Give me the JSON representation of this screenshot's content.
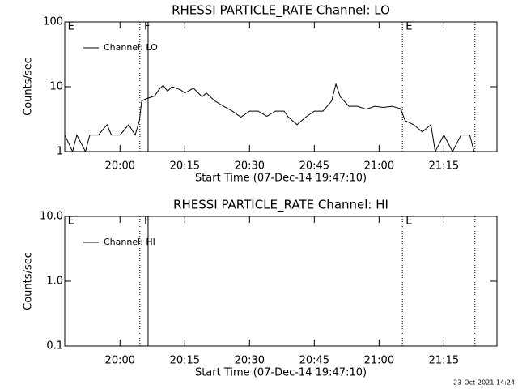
{
  "chart_data": [
    {
      "type": "line",
      "title": "RHESSI PARTICLE_RATE Channel: LO",
      "xlabel": "Start Time (07-Dec-14 19:47:10)",
      "ylabel": "Counts/sec",
      "log_y": true,
      "xlim": [
        1187.2,
        1287.3
      ],
      "ylim": [
        1,
        100
      ],
      "xticks": [
        {
          "value": 1200,
          "label": "20:00"
        },
        {
          "value": 1215,
          "label": "20:15"
        },
        {
          "value": 1230,
          "label": "20:30"
        },
        {
          "value": 1245,
          "label": "20:45"
        },
        {
          "value": 1260,
          "label": "21:00"
        },
        {
          "value": 1275,
          "label": "21:15"
        }
      ],
      "yticks": [
        1,
        10,
        100
      ],
      "legend": "upper left",
      "x": [
        1187.2,
        1189,
        1190,
        1192,
        1193,
        1195,
        1197,
        1198,
        1200,
        1202,
        1203.5,
        1204.5,
        1205,
        1206,
        1208,
        1209,
        1210,
        1211,
        1212,
        1214,
        1215,
        1217,
        1219,
        1220,
        1222,
        1224,
        1226,
        1228,
        1230,
        1232,
        1234,
        1236,
        1238,
        1239,
        1241,
        1243,
        1245,
        1247,
        1249,
        1250,
        1251,
        1253,
        1255,
        1257,
        1259,
        1261,
        1263,
        1265,
        1266,
        1268,
        1270,
        1272,
        1273,
        1275,
        1277,
        1279,
        1281,
        1282
      ],
      "series": [
        {
          "name": "Channel: LO",
          "color": "#000000",
          "values": [
            1.8,
            1,
            1.8,
            1,
            1.8,
            1.8,
            2.6,
            1.8,
            1.8,
            2.6,
            1.8,
            3,
            6,
            6.5,
            7.2,
            9,
            10.5,
            8.5,
            10,
            9,
            8,
            9.5,
            7,
            8,
            6,
            5,
            4.2,
            3.4,
            4.2,
            4.2,
            3.5,
            4.2,
            4.2,
            3.4,
            2.6,
            3.4,
            4.2,
            4.2,
            6,
            11,
            7,
            5,
            5,
            4.5,
            5,
            4.8,
            5,
            4.6,
            3,
            2.6,
            2,
            2.6,
            1,
            1.8,
            1,
            1.8,
            1.8,
            1
          ]
        }
      ],
      "vlines": [
        {
          "x": 1204.6,
          "style": "dotted"
        },
        {
          "x": 1206.5,
          "style": "solid"
        },
        {
          "x": 1265.4,
          "style": "dotted"
        },
        {
          "x": 1282.2,
          "style": "dotted"
        }
      ],
      "flags": [
        {
          "text": "E",
          "x": 1187.5
        },
        {
          "text": "F",
          "x": 1205.2
        },
        {
          "text": "E",
          "x": 1265.8
        }
      ]
    },
    {
      "type": "line",
      "title": "RHESSI PARTICLE_RATE Channel: HI",
      "xlabel": "Start Time (07-Dec-14 19:47:10)",
      "ylabel": "Counts/sec",
      "log_y": true,
      "xlim": [
        1187.2,
        1287.3
      ],
      "ylim": [
        0.1,
        10
      ],
      "xticks": [
        {
          "value": 1200,
          "label": "20:00"
        },
        {
          "value": 1215,
          "label": "20:15"
        },
        {
          "value": 1230,
          "label": "20:30"
        },
        {
          "value": 1245,
          "label": "20:45"
        },
        {
          "value": 1260,
          "label": "21:00"
        },
        {
          "value": 1275,
          "label": "21:15"
        }
      ],
      "yticks": [
        {
          "value": 0.1,
          "label": "0.1"
        },
        {
          "value": 1,
          "label": "1.0"
        },
        {
          "value": 10,
          "label": "10.0"
        }
      ],
      "legend": "upper left",
      "x": [],
      "series": [
        {
          "name": "Channel: HI",
          "color": "#000000",
          "values": []
        }
      ],
      "vlines": [
        {
          "x": 1204.6,
          "style": "dotted"
        },
        {
          "x": 1206.5,
          "style": "solid"
        },
        {
          "x": 1265.4,
          "style": "dotted"
        },
        {
          "x": 1282.2,
          "style": "dotted"
        }
      ],
      "flags": [
        {
          "text": "E",
          "x": 1187.5
        },
        {
          "text": "F",
          "x": 1205.2
        },
        {
          "text": "E",
          "x": 1265.8
        }
      ]
    }
  ],
  "footer": "23-Oct-2021 14:24"
}
